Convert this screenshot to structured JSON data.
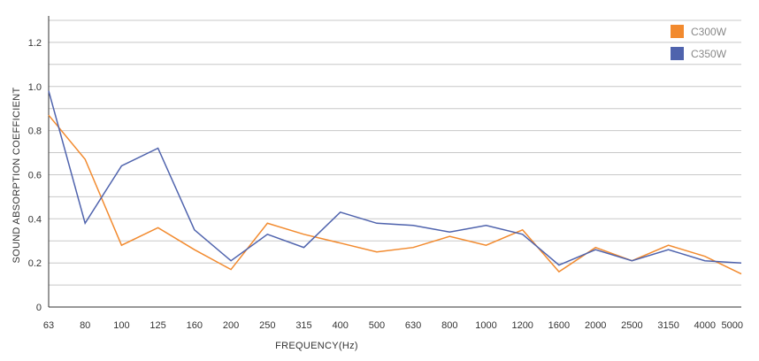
{
  "chart_data": {
    "type": "line",
    "title": "",
    "xlabel": "FREQUENCY(Hz)",
    "ylabel": "SOUND ABSORPTION COEFFICIENT",
    "categories": [
      "63",
      "80",
      "100",
      "125",
      "160",
      "200",
      "250",
      "315",
      "400",
      "500",
      "630",
      "800",
      "1000",
      "1200",
      "1600",
      "2000",
      "2500",
      "3150",
      "4000",
      "5000"
    ],
    "yticks": [
      "0",
      "0.2",
      "0.4",
      "0.6",
      "0.8",
      "1.0",
      "1.2"
    ],
    "ylim": [
      0,
      1.32
    ],
    "grid": true,
    "legend_position": "top-right",
    "series": [
      {
        "name": "C300W",
        "color": "#f28a2e",
        "values": [
          0.87,
          0.67,
          0.28,
          0.36,
          0.26,
          0.17,
          0.38,
          0.33,
          0.29,
          0.25,
          0.27,
          0.32,
          0.28,
          0.35,
          0.16,
          0.27,
          0.21,
          0.28,
          0.23,
          0.15
        ]
      },
      {
        "name": "C350W",
        "color": "#4f63ad",
        "values": [
          0.98,
          0.38,
          0.64,
          0.72,
          0.35,
          0.21,
          0.33,
          0.27,
          0.43,
          0.38,
          0.37,
          0.34,
          0.37,
          0.33,
          0.19,
          0.26,
          0.21,
          0.26,
          0.21,
          0.2
        ]
      }
    ]
  }
}
